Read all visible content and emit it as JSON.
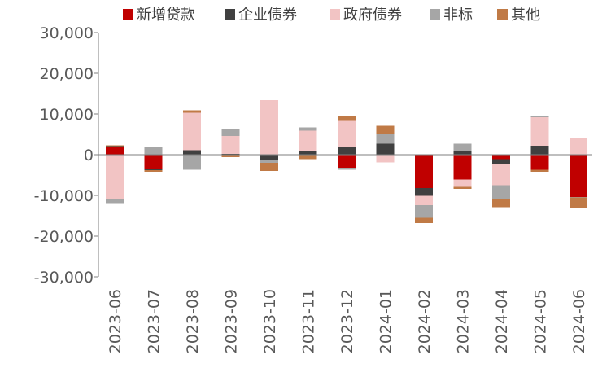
{
  "chart_data": {
    "type": "bar",
    "stacked": true,
    "categories": [
      "2023-06",
      "2023-07",
      "2023-08",
      "2023-09",
      "2023-10",
      "2023-11",
      "2023-12",
      "2024-01",
      "2024-02",
      "2024-03",
      "2024-04",
      "2024-05",
      "2024-06"
    ],
    "series": [
      {
        "name": "新增贷款",
        "color": "#c00000",
        "values": [
          1800,
          -3600,
          -100,
          100,
          -100,
          100,
          -3200,
          100,
          -8200,
          -6100,
          -1100,
          -3700,
          -10400
        ]
      },
      {
        "name": "企业债券",
        "color": "#404040",
        "values": [
          300,
          -200,
          1100,
          100,
          -1100,
          900,
          1900,
          2600,
          -1900,
          1000,
          -1100,
          2200,
          100
        ]
      },
      {
        "name": "政府债券",
        "color": "#f2c4c4",
        "values": [
          -10800,
          100,
          9200,
          4400,
          13400,
          4900,
          6400,
          -1900,
          -2300,
          -1800,
          -5300,
          7000,
          4000
        ]
      },
      {
        "name": "非标",
        "color": "#a6a6a6",
        "values": [
          -1100,
          1700,
          -3600,
          1700,
          -800,
          800,
          -500,
          2500,
          -3100,
          1700,
          -3400,
          400,
          -100
        ]
      },
      {
        "name": "其他",
        "color": "#c07a46",
        "values": [
          200,
          -400,
          600,
          -600,
          -2000,
          -1100,
          1300,
          1900,
          -1300,
          -500,
          -2000,
          -500,
          -2500
        ]
      }
    ],
    "ylim": [
      -30000,
      30000
    ],
    "yticks": [
      "30,000",
      "20,000",
      "10,000",
      "0",
      "-10,000",
      "-20,000",
      "-30,000"
    ],
    "grid": false,
    "legend": "top"
  }
}
